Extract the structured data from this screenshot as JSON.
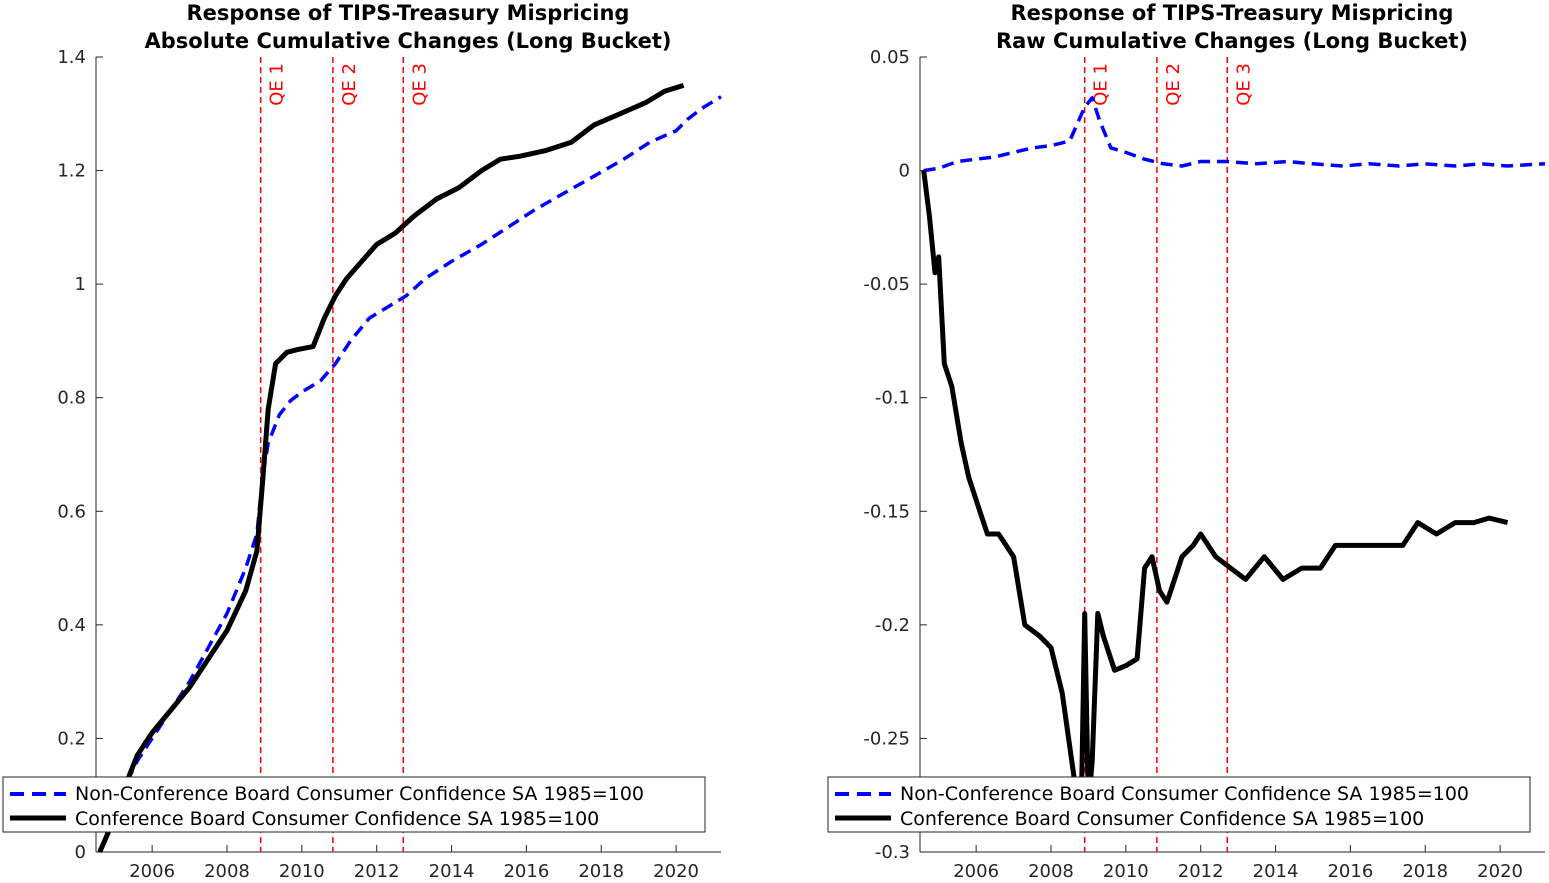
{
  "colors": {
    "blue_series": "#0000ff",
    "black_series": "#000000",
    "qe_lines": "#ff0000",
    "axes": "#262626"
  },
  "chart_data": [
    {
      "type": "line",
      "title": [
        "Response of TIPS-Treasury Mispricing",
        "Absolute Cumulative Changes (Long Bucket)"
      ],
      "xlabel": "",
      "ylabel": "",
      "xlim": [
        2004.5,
        2021.2
      ],
      "ylim": [
        0,
        1.4
      ],
      "x_ticks": [
        2006,
        2008,
        2010,
        2012,
        2014,
        2016,
        2018,
        2020
      ],
      "y_ticks": [
        0,
        0.2,
        0.4,
        0.6,
        0.8,
        1,
        1.2,
        1.4
      ],
      "y_tick_labels": [
        "0",
        "0.2",
        "0.4",
        "0.6",
        "0.8",
        "1",
        "1.2",
        "1.4"
      ],
      "grid": false,
      "legend_position": "bottom-left",
      "vertical_lines": [
        {
          "x": 2008.9,
          "label": "QE 1"
        },
        {
          "x": 2010.83,
          "label": "QE 2"
        },
        {
          "x": 2012.71,
          "label": "QE 3"
        }
      ],
      "series": [
        {
          "name": "Non-Conference Board Consumer Confidence SA 1985=100",
          "style": "dashed",
          "color": "#0000ff",
          "x": [
            2004.6,
            2005.0,
            2005.3,
            2005.6,
            2006.0,
            2006.5,
            2007.0,
            2007.5,
            2008.0,
            2008.5,
            2008.8,
            2008.95,
            2009.1,
            2009.4,
            2009.7,
            2010.0,
            2010.5,
            2010.9,
            2011.3,
            2011.8,
            2012.3,
            2012.8,
            2013.3,
            2014.0,
            2014.8,
            2015.5,
            2016.2,
            2017.0,
            2017.8,
            2018.6,
            2019.3,
            2020.0,
            2020.3,
            2020.7,
            2021.2
          ],
          "y": [
            0.0,
            0.07,
            0.12,
            0.16,
            0.2,
            0.25,
            0.3,
            0.36,
            0.42,
            0.5,
            0.56,
            0.66,
            0.72,
            0.77,
            0.795,
            0.81,
            0.83,
            0.86,
            0.9,
            0.94,
            0.96,
            0.98,
            1.01,
            1.04,
            1.07,
            1.1,
            1.13,
            1.16,
            1.19,
            1.22,
            1.25,
            1.27,
            1.29,
            1.31,
            1.33
          ]
        },
        {
          "name": "Conference Board Consumer Confidence SA 1985=100",
          "style": "solid",
          "color": "#000000",
          "x": [
            2004.6,
            2005.0,
            2005.3,
            2005.6,
            2006.0,
            2006.5,
            2007.0,
            2007.5,
            2008.0,
            2008.5,
            2008.8,
            2008.95,
            2009.1,
            2009.3,
            2009.6,
            2009.9,
            2010.3,
            2010.6,
            2010.9,
            2011.2,
            2011.6,
            2012.0,
            2012.5,
            2013.0,
            2013.6,
            2014.2,
            2014.8,
            2015.3,
            2015.8,
            2016.5,
            2017.2,
            2017.8,
            2018.5,
            2019.2,
            2019.7,
            2020.2
          ],
          "y": [
            0.0,
            0.06,
            0.12,
            0.17,
            0.21,
            0.25,
            0.29,
            0.34,
            0.39,
            0.46,
            0.53,
            0.65,
            0.78,
            0.86,
            0.88,
            0.885,
            0.89,
            0.94,
            0.98,
            1.01,
            1.04,
            1.07,
            1.09,
            1.12,
            1.15,
            1.17,
            1.2,
            1.22,
            1.225,
            1.235,
            1.25,
            1.28,
            1.3,
            1.32,
            1.34,
            1.35
          ]
        }
      ]
    },
    {
      "type": "line",
      "title": [
        "Response of TIPS-Treasury Mispricing",
        "Raw Cumulative Changes (Long Bucket)"
      ],
      "xlabel": "",
      "ylabel": "",
      "xlim": [
        2004.5,
        2021.2
      ],
      "ylim": [
        -0.3,
        0.05
      ],
      "x_ticks": [
        2006,
        2008,
        2010,
        2012,
        2014,
        2016,
        2018,
        2020
      ],
      "y_ticks": [
        -0.3,
        -0.25,
        -0.2,
        -0.15,
        -0.1,
        -0.05,
        0,
        0.05
      ],
      "y_tick_labels": [
        "-0.3",
        "-0.25",
        "-0.2",
        "-0.15",
        "-0.1",
        "-0.05",
        "0",
        "0.05"
      ],
      "grid": false,
      "legend_position": "bottom-left",
      "vertical_lines": [
        {
          "x": 2008.9,
          "label": "QE 1"
        },
        {
          "x": 2010.83,
          "label": "QE 2"
        },
        {
          "x": 2012.71,
          "label": "QE 3"
        }
      ],
      "series": [
        {
          "name": "Non-Conference Board Consumer Confidence SA 1985=100",
          "style": "dashed",
          "color": "#0000ff",
          "x": [
            2004.6,
            2005.0,
            2005.5,
            2006.0,
            2006.5,
            2007.0,
            2007.5,
            2008.0,
            2008.5,
            2008.9,
            2009.1,
            2009.3,
            2009.6,
            2010.0,
            2010.5,
            2011.0,
            2011.5,
            2012.0,
            2012.7,
            2013.5,
            2014.3,
            2015.0,
            2015.8,
            2016.5,
            2017.3,
            2018.0,
            2018.8,
            2019.5,
            2020.2,
            2021.2
          ],
          "y": [
            0.0,
            0.001,
            0.004,
            0.005,
            0.006,
            0.008,
            0.01,
            0.011,
            0.013,
            0.028,
            0.032,
            0.022,
            0.01,
            0.008,
            0.005,
            0.003,
            0.002,
            0.004,
            0.004,
            0.003,
            0.004,
            0.003,
            0.002,
            0.003,
            0.002,
            0.003,
            0.002,
            0.003,
            0.002,
            0.003
          ]
        },
        {
          "name": "Conference Board Consumer Confidence SA 1985=100",
          "style": "solid",
          "color": "#000000",
          "x": [
            2004.6,
            2004.75,
            2004.9,
            2005.0,
            2005.15,
            2005.35,
            2005.6,
            2005.8,
            2006.0,
            2006.3,
            2006.6,
            2007.0,
            2007.3,
            2007.7,
            2008.0,
            2008.3,
            2008.6,
            2008.8,
            2008.9,
            2009.0,
            2009.1,
            2009.25,
            2009.4,
            2009.7,
            2010.0,
            2010.3,
            2010.5,
            2010.7,
            2010.9,
            2011.1,
            2011.5,
            2011.8,
            2012.0,
            2012.4,
            2012.8,
            2013.2,
            2013.7,
            2014.2,
            2014.7,
            2015.2,
            2015.6,
            2016.0,
            2016.5,
            2017.0,
            2017.4,
            2017.8,
            2018.3,
            2018.8,
            2019.3,
            2019.7,
            2020.2
          ],
          "y": [
            0.0,
            -0.02,
            -0.045,
            -0.038,
            -0.085,
            -0.095,
            -0.12,
            -0.135,
            -0.145,
            -0.16,
            -0.16,
            -0.17,
            -0.2,
            -0.205,
            -0.21,
            -0.23,
            -0.265,
            -0.29,
            -0.195,
            -0.28,
            -0.26,
            -0.195,
            -0.205,
            -0.22,
            -0.218,
            -0.215,
            -0.175,
            -0.17,
            -0.185,
            -0.19,
            -0.17,
            -0.165,
            -0.16,
            -0.17,
            -0.175,
            -0.18,
            -0.17,
            -0.18,
            -0.175,
            -0.175,
            -0.165,
            -0.165,
            -0.165,
            -0.165,
            -0.165,
            -0.155,
            -0.16,
            -0.155,
            -0.155,
            -0.153,
            -0.155
          ]
        }
      ]
    }
  ]
}
